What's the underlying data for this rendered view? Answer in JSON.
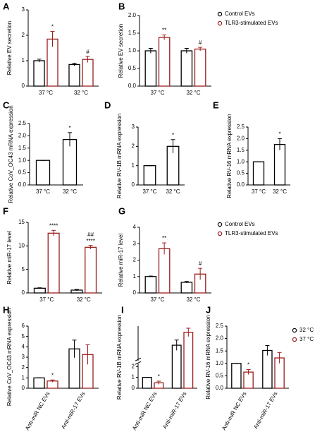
{
  "chart_data": [
    {
      "type": "grouped_bar",
      "label": "A",
      "ylabel": "Relative EV secretion",
      "categories": [
        "37 °C",
        "32 °C"
      ],
      "series": [
        {
          "name": "Control EVs",
          "color": "#000000",
          "values": [
            1.0,
            0.85
          ],
          "errors": [
            0.06,
            0.05
          ],
          "sig": [
            null,
            null
          ]
        },
        {
          "name": "TLR3-stimulated EVs",
          "color": "#9b1c1c",
          "values": [
            1.85,
            1.05
          ],
          "errors": [
            0.3,
            0.12
          ],
          "sig": [
            [
              "*"
            ],
            [
              "#"
            ]
          ]
        }
      ],
      "ylim": [
        0,
        3
      ],
      "yticks": [
        0,
        1,
        2,
        3
      ]
    },
    {
      "type": "grouped_bar",
      "label": "B",
      "ylabel": "Relative EV secretion",
      "categories": [
        "37 °C",
        "32 °C"
      ],
      "legend": true,
      "series": [
        {
          "name": "Control EVs",
          "color": "#000000",
          "values": [
            1.0,
            1.0
          ],
          "errors": [
            0.07,
            0.07
          ],
          "sig": [
            null,
            null
          ]
        },
        {
          "name": "TLR3-stimulated EVs",
          "color": "#9b1c1c",
          "values": [
            1.38,
            1.05
          ],
          "errors": [
            0.07,
            0.05
          ],
          "sig": [
            [
              "**"
            ],
            [
              "#"
            ]
          ]
        }
      ],
      "ylim": [
        0,
        2
      ],
      "yticks": [
        {
          "value": 0,
          "label": "0.0"
        },
        {
          "value": 0.5,
          "label": "0.5"
        },
        {
          "value": 1,
          "label": "1.0"
        },
        {
          "value": 1.5,
          "label": "1.5"
        },
        {
          "value": 2,
          "label": "2.0"
        }
      ]
    },
    {
      "type": "bar",
      "label": "C",
      "ylabel": "Relative CoV_OC43 mRNA expression",
      "categories": [
        "37 °C",
        "32 °C"
      ],
      "color": "#000000",
      "values": [
        1.0,
        1.85
      ],
      "errors": [
        0,
        0.28
      ],
      "sig": [
        null,
        [
          "*"
        ]
      ],
      "ylim": [
        0,
        2.5
      ],
      "yticks": [
        {
          "value": 0,
          "label": "0.0"
        },
        {
          "value": 0.5,
          "label": "0.5"
        },
        {
          "value": 1,
          "label": "1.0"
        },
        {
          "value": 1.5,
          "label": "1.5"
        },
        {
          "value": 2,
          "label": "2.0"
        },
        {
          "value": 2.5,
          "label": "2.5"
        }
      ]
    },
    {
      "type": "bar",
      "label": "D",
      "ylabel": "Relative RV-1B mRNA expression",
      "categories": [
        "37 °C",
        "32 °C"
      ],
      "color": "#000000",
      "values": [
        1.0,
        2.0
      ],
      "errors": [
        0,
        0.35
      ],
      "sig": [
        null,
        [
          "*"
        ]
      ],
      "ylim": [
        0,
        3
      ],
      "yticks": [
        0,
        1,
        2,
        3
      ]
    },
    {
      "type": "bar",
      "label": "E",
      "ylabel": "Relative RV-16 mRNA expression",
      "categories": [
        "37 °C",
        "32 °C"
      ],
      "color": "#000000",
      "values": [
        1.0,
        1.75
      ],
      "errors": [
        0,
        0.25
      ],
      "sig": [
        null,
        [
          "*"
        ]
      ],
      "ylim": [
        0,
        2.5
      ],
      "yticks": [
        {
          "value": 0,
          "label": "0.0"
        },
        {
          "value": 0.5,
          "label": "0.5"
        },
        {
          "value": 1,
          "label": "1.0"
        },
        {
          "value": 1.5,
          "label": "1.5"
        },
        {
          "value": 2,
          "label": "2.0"
        },
        {
          "value": 2.5,
          "label": "2.5"
        }
      ]
    },
    {
      "type": "grouped_bar",
      "label": "F",
      "ylabel": "Relative miR-17 level",
      "categories": [
        "37 °C",
        "32 °C"
      ],
      "series": [
        {
          "name": "Control EVs",
          "color": "#000000",
          "values": [
            1.0,
            0.6
          ],
          "errors": [
            0.1,
            0.15
          ],
          "sig": [
            null,
            null
          ]
        },
        {
          "name": "TLR3-stimulated EVs",
          "color": "#9b1c1c",
          "values": [
            12.7,
            9.7
          ],
          "errors": [
            0.6,
            0.4
          ],
          "sig": [
            [
              "****"
            ],
            [
              "##",
              "****"
            ]
          ]
        }
      ],
      "ylim": [
        0,
        15
      ],
      "yticks": [
        0,
        5,
        10,
        15
      ]
    },
    {
      "type": "grouped_bar",
      "label": "G",
      "ylabel": "Relative miR-17 level",
      "categories": [
        "37 °C",
        "32 °C"
      ],
      "legend": true,
      "series": [
        {
          "name": "Control EVs",
          "color": "#000000",
          "values": [
            1.0,
            0.65
          ],
          "errors": [
            0.03,
            0.05
          ],
          "sig": [
            null,
            null
          ]
        },
        {
          "name": "TLR3-stimulated EVs",
          "color": "#9b1c1c",
          "values": [
            2.7,
            1.15
          ],
          "errors": [
            0.35,
            0.35
          ],
          "sig": [
            [
              "**"
            ],
            [
              "#"
            ]
          ]
        }
      ],
      "ylim": [
        0,
        4
      ],
      "yticks": [
        0,
        1,
        2,
        3,
        4
      ]
    },
    {
      "type": "grouped_bar",
      "label": "H",
      "ylabel": "Relative CoV_OC43 mRNA expression",
      "categories": [
        "Anti-miR NC EVs",
        "Anti-miR-17 EVs"
      ],
      "series": [
        {
          "name": "32 °C",
          "color": "#000000",
          "values": [
            1.0,
            3.8
          ],
          "errors": [
            0,
            0.85
          ],
          "sig": [
            null,
            null
          ]
        },
        {
          "name": "37 °C",
          "color": "#9b1c1c",
          "values": [
            0.7,
            3.25
          ],
          "errors": [
            0.1,
            0.95
          ],
          "sig": [
            [
              "*"
            ],
            null
          ]
        }
      ],
      "ylim": [
        0,
        6
      ],
      "yticks": [
        0,
        1,
        2,
        3,
        4,
        5,
        6
      ]
    },
    {
      "type": "grouped_bar",
      "label": "I",
      "ylabel": "Relative RV-1B mRNA expression",
      "categories": [
        "Anti-miR NC EVs",
        "Anti-miR-17 EVs"
      ],
      "ybreak": 2,
      "series": [
        {
          "name": "32 °C",
          "color": "#000000",
          "values": [
            1.0,
            6.5
          ],
          "errors": [
            0,
            1.5
          ],
          "sig": [
            null,
            null
          ]
        },
        {
          "name": "37 °C",
          "color": "#9b1c1c",
          "values": [
            0.5,
            10.2
          ],
          "errors": [
            0.15,
            1.2
          ],
          "sig": [
            [
              "*"
            ],
            null
          ]
        }
      ],
      "ylim": [
        0,
        12
      ],
      "yticks": [
        0,
        1,
        2
      ]
    },
    {
      "type": "grouped_bar",
      "label": "J",
      "ylabel": "Relative RV-16 mRNA expression",
      "categories": [
        "Anti-miR NC EVs",
        "Anti-miR-17 EVs"
      ],
      "legend": true,
      "series": [
        {
          "name": "32 °C",
          "color": "#000000",
          "values": [
            1.0,
            1.52
          ],
          "errors": [
            0,
            0.2
          ],
          "sig": [
            null,
            null
          ]
        },
        {
          "name": "37 °C",
          "color": "#9b1c1c",
          "values": [
            0.65,
            1.22
          ],
          "errors": [
            0.1,
            0.22
          ],
          "sig": [
            [
              "*"
            ],
            null
          ]
        }
      ],
      "ylim": [
        0,
        2.5
      ],
      "yticks": [
        {
          "value": 0,
          "label": "0.0"
        },
        {
          "value": 0.5,
          "label": "0.5"
        },
        {
          "value": 1,
          "label": "1.0"
        },
        {
          "value": 1.5,
          "label": "1.5"
        },
        {
          "value": 2,
          "label": "2.0"
        },
        {
          "value": 2.5,
          "label": "2.5"
        }
      ]
    }
  ]
}
